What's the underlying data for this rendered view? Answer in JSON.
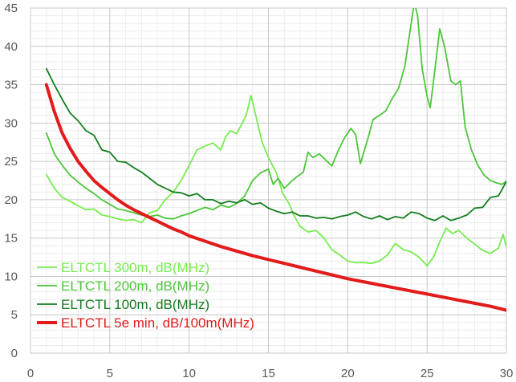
{
  "chart_data": {
    "type": "line",
    "title": "",
    "xlabel": "",
    "ylabel": "",
    "xlim": [
      0,
      30
    ],
    "ylim": [
      0,
      45
    ],
    "xticks": [
      0,
      5,
      10,
      15,
      20,
      25,
      30
    ],
    "yticks": [
      0,
      5,
      10,
      15,
      20,
      25,
      30,
      35,
      40,
      45
    ],
    "grid": true,
    "legend_position": "bottom-left",
    "series": [
      {
        "name": "ELTCTL 300m, dB(MHz)",
        "color": "#77ec50",
        "width": 1.8,
        "points": [
          [
            1,
            23.3
          ],
          [
            1.5,
            21.5
          ],
          [
            2,
            20.3
          ],
          [
            2.5,
            19.8
          ],
          [
            3,
            19.2
          ],
          [
            3.5,
            18.7
          ],
          [
            4,
            18.8
          ],
          [
            4.5,
            18.0
          ],
          [
            5,
            17.8
          ],
          [
            5.5,
            17.5
          ],
          [
            6,
            17.3
          ],
          [
            6.5,
            17.4
          ],
          [
            7,
            17.0
          ],
          [
            7.5,
            18.3
          ],
          [
            8,
            18.6
          ],
          [
            8.5,
            20.0
          ],
          [
            9,
            21.0
          ],
          [
            9.5,
            22.5
          ],
          [
            10,
            24.5
          ],
          [
            10.5,
            26.5
          ],
          [
            11,
            27.0
          ],
          [
            11.5,
            27.4
          ],
          [
            12,
            26.5
          ],
          [
            12.3,
            28.2
          ],
          [
            12.6,
            29.0
          ],
          [
            13,
            28.6
          ],
          [
            13.3,
            29.8
          ],
          [
            13.6,
            31.0
          ],
          [
            13.9,
            33.6
          ],
          [
            14.2,
            31.0
          ],
          [
            14.6,
            27.5
          ],
          [
            15,
            25.5
          ],
          [
            15.5,
            23.5
          ],
          [
            15.9,
            20.8
          ],
          [
            16.3,
            19.5
          ],
          [
            16.6,
            18.0
          ],
          [
            17,
            16.5
          ],
          [
            17.5,
            15.8
          ],
          [
            18,
            16.0
          ],
          [
            18.5,
            15.0
          ],
          [
            19,
            13.5
          ],
          [
            19.5,
            12.8
          ],
          [
            20,
            12.0
          ],
          [
            20.5,
            11.8
          ],
          [
            21,
            11.8
          ],
          [
            21.5,
            11.7
          ],
          [
            22,
            12.0
          ],
          [
            22.5,
            12.8
          ],
          [
            23,
            14.3
          ],
          [
            23.5,
            13.5
          ],
          [
            24,
            13.2
          ],
          [
            24.5,
            12.5
          ],
          [
            25,
            11.4
          ],
          [
            25.4,
            12.5
          ],
          [
            25.8,
            14.5
          ],
          [
            26.2,
            16.3
          ],
          [
            26.6,
            15.6
          ],
          [
            27,
            16.0
          ],
          [
            27.5,
            15.0
          ],
          [
            28,
            14.2
          ],
          [
            28.5,
            13.4
          ],
          [
            29,
            13.0
          ],
          [
            29.5,
            13.7
          ],
          [
            29.8,
            15.5
          ],
          [
            30,
            13.8
          ]
        ]
      },
      {
        "name": "ELTCTL 200m, dB(MHz)",
        "color": "#4cc739",
        "width": 1.8,
        "points": [
          [
            1,
            28.7
          ],
          [
            1.5,
            26.0
          ],
          [
            2,
            24.5
          ],
          [
            2.5,
            23.2
          ],
          [
            3,
            22.3
          ],
          [
            3.5,
            21.5
          ],
          [
            4,
            20.8
          ],
          [
            4.5,
            20.0
          ],
          [
            5,
            19.4
          ],
          [
            5.5,
            18.8
          ],
          [
            6,
            18.6
          ],
          [
            6.5,
            18.3
          ],
          [
            7,
            18.0
          ],
          [
            7.5,
            17.8
          ],
          [
            8,
            18.0
          ],
          [
            8.5,
            17.6
          ],
          [
            9,
            17.5
          ],
          [
            9.5,
            17.9
          ],
          [
            10,
            18.2
          ],
          [
            10.5,
            18.6
          ],
          [
            11,
            19.0
          ],
          [
            11.5,
            18.7
          ],
          [
            12,
            19.3
          ],
          [
            12.5,
            19.0
          ],
          [
            13,
            19.5
          ],
          [
            13.5,
            20.5
          ],
          [
            14,
            22.5
          ],
          [
            14.5,
            23.5
          ],
          [
            15,
            24.0
          ],
          [
            15.3,
            22.0
          ],
          [
            15.6,
            22.8
          ],
          [
            16,
            21.5
          ],
          [
            16.5,
            22.5
          ],
          [
            16.8,
            23.0
          ],
          [
            17.2,
            23.6
          ],
          [
            17.5,
            26.2
          ],
          [
            17.8,
            25.5
          ],
          [
            18.2,
            26.0
          ],
          [
            18.6,
            25.2
          ],
          [
            19,
            24.4
          ],
          [
            19.4,
            26.4
          ],
          [
            19.8,
            28.1
          ],
          [
            20.2,
            29.3
          ],
          [
            20.5,
            28.5
          ],
          [
            20.8,
            24.7
          ],
          [
            21.2,
            27.5
          ],
          [
            21.6,
            30.5
          ],
          [
            22,
            31.0
          ],
          [
            22.4,
            31.6
          ],
          [
            22.8,
            33.2
          ],
          [
            23.2,
            34.5
          ],
          [
            23.6,
            37.4
          ],
          [
            23.9,
            41.6
          ],
          [
            24.2,
            45.7
          ],
          [
            24.4,
            44.0
          ],
          [
            24.7,
            37.0
          ],
          [
            25,
            33.5
          ],
          [
            25.2,
            32.0
          ],
          [
            25.5,
            37.0
          ],
          [
            25.8,
            42.3
          ],
          [
            26.1,
            40.0
          ],
          [
            26.5,
            35.5
          ],
          [
            26.8,
            35.0
          ],
          [
            27.1,
            35.5
          ],
          [
            27.4,
            29.5
          ],
          [
            27.8,
            26.5
          ],
          [
            28.2,
            24.5
          ],
          [
            28.6,
            23.2
          ],
          [
            29,
            22.5
          ],
          [
            29.4,
            22.2
          ],
          [
            29.7,
            22.0
          ],
          [
            30,
            22.4
          ]
        ]
      },
      {
        "name": "ELTCTL 100m, dB(MHz)",
        "color": "#137e1d",
        "width": 1.8,
        "points": [
          [
            1,
            37.1
          ],
          [
            1.5,
            35.0
          ],
          [
            2,
            33.1
          ],
          [
            2.5,
            31.3
          ],
          [
            3,
            30.3
          ],
          [
            3.5,
            29.0
          ],
          [
            4,
            28.4
          ],
          [
            4.5,
            26.5
          ],
          [
            5,
            26.2
          ],
          [
            5.5,
            25.0
          ],
          [
            6,
            24.9
          ],
          [
            6.5,
            24.2
          ],
          [
            7,
            23.6
          ],
          [
            7.5,
            22.8
          ],
          [
            8,
            22.0
          ],
          [
            8.5,
            21.5
          ],
          [
            9,
            21.0
          ],
          [
            9.5,
            20.9
          ],
          [
            10,
            20.5
          ],
          [
            10.5,
            20.8
          ],
          [
            11,
            20.0
          ],
          [
            11.5,
            20.0
          ],
          [
            12,
            19.5
          ],
          [
            12.5,
            19.8
          ],
          [
            13,
            19.6
          ],
          [
            13.5,
            20.0
          ],
          [
            14,
            19.4
          ],
          [
            14.5,
            19.6
          ],
          [
            15,
            18.9
          ],
          [
            15.5,
            18.5
          ],
          [
            16,
            18.2
          ],
          [
            16.5,
            18.4
          ],
          [
            17,
            17.9
          ],
          [
            17.5,
            17.9
          ],
          [
            18,
            17.6
          ],
          [
            18.5,
            17.7
          ],
          [
            19,
            17.5
          ],
          [
            19.5,
            17.8
          ],
          [
            20,
            18.0
          ],
          [
            20.5,
            18.4
          ],
          [
            21,
            17.8
          ],
          [
            21.5,
            17.5
          ],
          [
            22,
            17.9
          ],
          [
            22.5,
            17.4
          ],
          [
            23,
            17.8
          ],
          [
            23.5,
            17.6
          ],
          [
            24,
            18.4
          ],
          [
            24.5,
            18.2
          ],
          [
            25,
            17.6
          ],
          [
            25.5,
            17.3
          ],
          [
            26,
            17.9
          ],
          [
            26.5,
            17.3
          ],
          [
            27,
            17.6
          ],
          [
            27.5,
            18.0
          ],
          [
            28,
            18.9
          ],
          [
            28.5,
            19.0
          ],
          [
            29,
            20.3
          ],
          [
            29.5,
            20.5
          ],
          [
            29.8,
            21.6
          ],
          [
            30,
            22.4
          ]
        ]
      },
      {
        "name": "ELTCTL 5e min, dB/100m(MHz)",
        "color": "#e31b1b",
        "width": 4,
        "points": [
          [
            1,
            35
          ],
          [
            1.5,
            31.5
          ],
          [
            2,
            28.7
          ],
          [
            2.5,
            26.7
          ],
          [
            3,
            25.0
          ],
          [
            3.5,
            23.7
          ],
          [
            4,
            22.5
          ],
          [
            4.5,
            21.6
          ],
          [
            5,
            20.8
          ],
          [
            5.5,
            20.0
          ],
          [
            6,
            19.3
          ],
          [
            6.5,
            18.7
          ],
          [
            7,
            18.2
          ],
          [
            7.5,
            17.7
          ],
          [
            8,
            17.2
          ],
          [
            8.5,
            16.7
          ],
          [
            9,
            16.2
          ],
          [
            9.5,
            15.8
          ],
          [
            10,
            15.3
          ],
          [
            11,
            14.6
          ],
          [
            12,
            13.9
          ],
          [
            13,
            13.3
          ],
          [
            14,
            12.7
          ],
          [
            15,
            12.2
          ],
          [
            16,
            11.7
          ],
          [
            17,
            11.2
          ],
          [
            18,
            10.7
          ],
          [
            19,
            10.2
          ],
          [
            20,
            9.7
          ],
          [
            21,
            9.3
          ],
          [
            22,
            8.9
          ],
          [
            23,
            8.5
          ],
          [
            24,
            8.1
          ],
          [
            25,
            7.7
          ],
          [
            26,
            7.3
          ],
          [
            27,
            6.9
          ],
          [
            28,
            6.5
          ],
          [
            29,
            6.1
          ],
          [
            30,
            5.6
          ]
        ]
      }
    ]
  }
}
